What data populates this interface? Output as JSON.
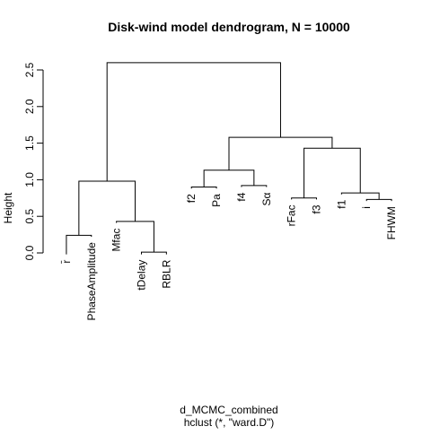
{
  "chart_data": {
    "type": "dendrogram",
    "title": "Disk-wind model dendrogram, N = 10000",
    "ylabel": "Height",
    "xlabel": "d_MCMC_combined",
    "sublabel": "hclust (*, \"ward.D\")",
    "ylim": [
      0,
      2.6
    ],
    "y_ticks": [
      0.0,
      0.5,
      1.0,
      1.5,
      2.0,
      2.5
    ],
    "y_tick_labels": [
      "0.0",
      "0.5",
      "1.0",
      "1.5",
      "2.0",
      "2.5"
    ],
    "grid": false,
    "leaves": [
      {
        "label": "r̄",
        "label_height": -0.02
      },
      {
        "label": "PhaseAmplitude",
        "label_height": 0.22
      },
      {
        "label": "Mfac",
        "label_height": 0.41
      },
      {
        "label": "tDelay",
        "label_height": -0.02
      },
      {
        "label": "RBLR",
        "label_height": -0.02
      },
      {
        "label": "f2",
        "label_height": 0.88
      },
      {
        "label": "Pa",
        "label_height": 0.88
      },
      {
        "label": "f4",
        "label_height": 0.9
      },
      {
        "label": "Sα",
        "label_height": 0.9
      },
      {
        "label": "rFac",
        "label_height": 0.73
      },
      {
        "label": "f3",
        "label_height": 0.73
      },
      {
        "label": "f1",
        "label_height": 0.8
      },
      {
        "label": "i",
        "label_height": 0.71
      },
      {
        "label": "FHWM",
        "label_height": 0.71
      }
    ],
    "merges": [
      {
        "left": "leaf:0",
        "right": "leaf:1",
        "height": 0.24
      },
      {
        "left": "leaf:3",
        "right": "leaf:4",
        "height": 0.01
      },
      {
        "left": "leaf:2",
        "right": "node:1",
        "height": 0.43
      },
      {
        "left": "node:0",
        "right": "node:2",
        "height": 0.98
      },
      {
        "left": "leaf:5",
        "right": "leaf:6",
        "height": 0.9
      },
      {
        "left": "leaf:7",
        "right": "leaf:8",
        "height": 0.92
      },
      {
        "left": "node:4",
        "right": "node:5",
        "height": 1.13
      },
      {
        "left": "leaf:9",
        "right": "leaf:10",
        "height": 0.75
      },
      {
        "left": "leaf:12",
        "right": "leaf:13",
        "height": 0.73
      },
      {
        "left": "leaf:11",
        "right": "node:8",
        "height": 0.82
      },
      {
        "left": "node:7",
        "right": "node:9",
        "height": 1.43
      },
      {
        "left": "node:6",
        "right": "node:10",
        "height": 1.58
      },
      {
        "left": "node:3",
        "right": "node:11",
        "height": 2.6
      }
    ]
  }
}
